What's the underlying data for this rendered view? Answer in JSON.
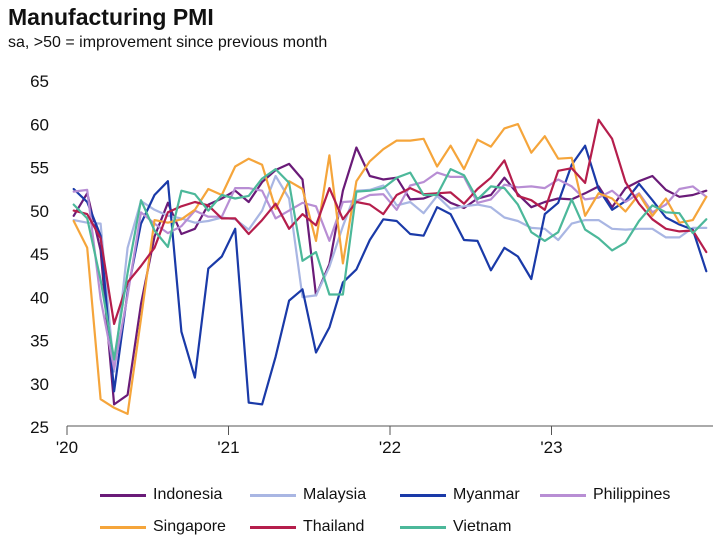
{
  "chart_data": {
    "type": "line",
    "title": "Manufacturing PMI",
    "subtitle": "sa, >50 = improvement since previous month",
    "xlabel": "",
    "ylabel": "",
    "ylim": [
      25,
      65
    ],
    "yticks": [
      "65",
      "60",
      "55",
      "50",
      "45",
      "40",
      "35",
      "30",
      "25"
    ],
    "xticks": [
      "'20",
      "'21",
      "'22",
      "'23"
    ],
    "x": [
      "2020-01",
      "2020-02",
      "2020-03",
      "2020-04",
      "2020-05",
      "2020-06",
      "2020-07",
      "2020-08",
      "2020-09",
      "2020-10",
      "2020-11",
      "2020-12",
      "2021-01",
      "2021-02",
      "2021-03",
      "2021-04",
      "2021-05",
      "2021-06",
      "2021-07",
      "2021-08",
      "2021-09",
      "2021-10",
      "2021-11",
      "2021-12",
      "2022-01",
      "2022-02",
      "2022-03",
      "2022-04",
      "2022-05",
      "2022-06",
      "2022-07",
      "2022-08",
      "2022-09",
      "2022-10",
      "2022-11",
      "2022-12",
      "2023-01",
      "2023-02",
      "2023-03",
      "2023-04",
      "2023-05",
      "2023-06",
      "2023-07",
      "2023-08",
      "2023-09",
      "2023-10",
      "2023-11",
      "2023-12"
    ],
    "grid": false,
    "legend_position": "bottom",
    "series": [
      {
        "name": "Indonesia",
        "color": "#6a1b78",
        "values": [
          49.3,
          51.9,
          45.3,
          27.5,
          28.6,
          39.1,
          46.9,
          50.8,
          47.2,
          47.8,
          50.6,
          51.3,
          52.2,
          50.9,
          53.2,
          54.6,
          55.3,
          53.5,
          40.1,
          43.7,
          52.2,
          57.2,
          53.9,
          53.5,
          53.7,
          51.2,
          51.3,
          51.9,
          50.8,
          50.2,
          51.3,
          51.7,
          53.7,
          51.8,
          50.3,
          50.9,
          51.3,
          51.2,
          51.9,
          52.7,
          50.3,
          52.5,
          53.3,
          53.9,
          52.3,
          51.5,
          51.7,
          52.2
        ]
      },
      {
        "name": "Malaysia",
        "color": "#a9b6e3",
        "values": [
          48.8,
          48.5,
          48.4,
          31.3,
          45.6,
          51.0,
          50.0,
          49.3,
          49.0,
          48.5,
          48.7,
          49.1,
          48.9,
          47.7,
          49.9,
          53.9,
          51.3,
          39.9,
          40.1,
          43.4,
          48.1,
          52.2,
          52.3,
          52.8,
          50.5,
          50.9,
          49.6,
          51.6,
          50.1,
          50.4,
          50.6,
          50.3,
          49.1,
          48.7,
          47.9,
          47.8,
          46.5,
          48.4,
          48.8,
          48.8,
          47.8,
          47.7,
          47.8,
          47.8,
          46.8,
          46.8,
          47.9,
          47.9
        ]
      },
      {
        "name": "Myanmar",
        "color": "#1a3aa8",
        "values": [
          52.4,
          50.9,
          47.0,
          29.0,
          40.5,
          48.4,
          51.7,
          53.3,
          35.9,
          30.6,
          43.2,
          44.6,
          47.8,
          27.7,
          27.5,
          33.0,
          39.5,
          40.8,
          33.5,
          36.4,
          41.6,
          43.1,
          46.5,
          48.9,
          48.7,
          47.2,
          47.0,
          50.3,
          49.5,
          46.5,
          46.4,
          43.0,
          45.6,
          44.6,
          42.0,
          49.5,
          50.8,
          55.2,
          57.4,
          52.4,
          50.0,
          51.0,
          53.0,
          51.1,
          49.1,
          48.3,
          47.7,
          42.9
        ]
      },
      {
        "name": "Philippines",
        "color": "#b88ed4",
        "values": [
          52.1,
          52.3,
          39.7,
          31.6,
          40.1,
          49.7,
          48.4,
          47.3,
          48.1,
          49.9,
          49.2,
          49.2,
          52.5,
          52.5,
          52.2,
          49.0,
          49.9,
          50.8,
          50.4,
          46.4,
          50.9,
          51.0,
          51.7,
          51.8,
          50.0,
          52.8,
          53.2,
          54.3,
          53.8,
          53.8,
          50.8,
          51.2,
          52.9,
          52.6,
          52.7,
          52.5,
          53.5,
          52.7,
          51.2,
          51.4,
          52.2,
          50.9,
          51.9,
          49.7,
          50.6,
          52.4,
          52.7,
          51.5
        ]
      },
      {
        "name": "Singapore",
        "color": "#f5a53b",
        "values": [
          48.7,
          45.6,
          28.1,
          27.1,
          26.4,
          37.4,
          48.8,
          48.5,
          48.9,
          50.0,
          52.4,
          51.7,
          55.0,
          55.9,
          55.2,
          50.1,
          53.3,
          52.4,
          46.4,
          56.3,
          43.8,
          53.3,
          55.6,
          57.0,
          58.0,
          58.0,
          58.2,
          55.0,
          57.4,
          54.7,
          58.1,
          57.3,
          59.4,
          59.9,
          56.6,
          58.5,
          55.9,
          56.0,
          49.3,
          51.9,
          51.3,
          49.8,
          51.8,
          49.3,
          51.3,
          48.5,
          48.8,
          51.5
        ]
      },
      {
        "name": "Thailand",
        "color": "#b51e4c",
        "values": [
          49.9,
          49.5,
          46.7,
          36.8,
          41.6,
          43.5,
          45.6,
          49.7,
          50.4,
          50.9,
          50.5,
          49.0,
          49.0,
          47.2,
          48.8,
          50.7,
          47.8,
          49.5,
          48.2,
          52.5,
          48.9,
          50.9,
          50.6,
          49.5,
          51.7,
          52.5,
          51.8,
          51.9,
          52.0,
          50.7,
          52.4,
          53.7,
          55.7,
          51.6,
          51.1,
          50.0,
          54.5,
          54.8,
          53.1,
          60.4,
          58.2,
          53.2,
          50.7,
          48.9,
          47.8,
          47.5,
          47.6,
          45.1
        ]
      },
      {
        "name": "Vietnam",
        "color": "#4cb89a",
        "values": [
          50.6,
          49.0,
          41.9,
          32.7,
          42.7,
          51.1,
          47.6,
          45.7,
          52.2,
          51.8,
          49.9,
          51.7,
          51.3,
          51.6,
          53.6,
          54.7,
          53.1,
          44.1,
          45.1,
          40.2,
          40.2,
          52.1,
          52.2,
          52.5,
          53.7,
          54.3,
          51.7,
          51.7,
          54.7,
          54.0,
          51.2,
          52.7,
          52.5,
          50.6,
          47.4,
          46.4,
          47.4,
          51.2,
          47.7,
          46.7,
          45.3,
          46.2,
          48.7,
          50.5,
          49.7,
          49.6,
          47.3,
          48.9
        ]
      }
    ]
  }
}
